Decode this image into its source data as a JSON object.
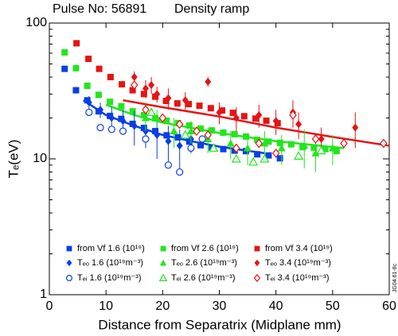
{
  "chart_data": {
    "type": "scatter",
    "title": "Pulse No: 56891",
    "subtitle": "Density ramp",
    "x_label": "Distance from Separatrix (Midplane mm)",
    "y_label": "Tₑ(eV)",
    "side_label": "JG04.61-8c",
    "log_y": true,
    "xlim": [
      0,
      60
    ],
    "xticks": [
      0,
      10,
      20,
      30,
      40,
      50,
      60
    ],
    "ylim": [
      1,
      100
    ],
    "yticks": [
      1,
      10,
      100
    ],
    "y_minor_ticks": [
      2,
      3,
      4,
      5,
      6,
      7,
      8,
      9,
      20,
      30,
      40,
      50,
      60,
      70,
      80,
      90
    ],
    "series": [
      {
        "name": "from Vf 1.6 (10¹⁹)",
        "color": "#0a3ee6",
        "marker": "square",
        "filled": true,
        "x": [
          2.7,
          4.7,
          6.7,
          8.7,
          10.7,
          12.7,
          14.7,
          16.7,
          18.7,
          20.7,
          22.7,
          24.7,
          26.7,
          28.7,
          30.7,
          32.7,
          34.7,
          36.7,
          38.7,
          40.7
        ],
        "values": [
          46,
          32,
          27,
          22.4,
          20.7,
          19.7,
          18.1,
          16.9,
          16,
          14.9,
          14.4,
          13.4,
          12.6,
          12.1,
          11.8,
          11.5,
          11.4,
          10.8,
          10.6,
          10.1
        ]
      },
      {
        "name": "from Vf 2.6 (10¹⁹)",
        "color": "#22e61e",
        "marker": "square",
        "filled": true,
        "x": [
          2.7,
          4.7,
          6.7,
          8.7,
          10.7,
          12.7,
          14.7,
          16.7,
          18.7,
          20.7,
          22.7,
          24.7,
          26.7,
          28.7,
          30.7,
          32.7,
          34.7,
          36.7,
          38.7,
          40.7,
          42.7,
          44.7,
          46.7,
          48.7,
          50.7
        ],
        "values": [
          60.8,
          46.5,
          34.5,
          29.6,
          26.3,
          24.4,
          22.4,
          21,
          19.9,
          19.1,
          18.3,
          17.6,
          16.7,
          16.2,
          15.6,
          15.2,
          14.6,
          13.8,
          13.4,
          13.1,
          12.8,
          12.2,
          12.1,
          11.8,
          11.4
        ]
      },
      {
        "name": "from Vf 3.4 (10¹⁹)",
        "color": "#e61414",
        "marker": "square",
        "filled": true,
        "x": [
          4.8,
          6.9,
          8.8,
          10.8,
          12.8,
          14.7,
          16.7,
          18.7,
          20.6,
          22.6,
          24.6,
          26.5,
          28.5,
          30.5,
          32.4,
          34.4,
          36.4,
          38.3,
          40.3
        ],
        "values": [
          71,
          54.5,
          46,
          40,
          35.4,
          32,
          30,
          28.7,
          26.7,
          25.6,
          25.3,
          24.6,
          23.6,
          22.7,
          21.8,
          20.6,
          19.8,
          19.1,
          18.3
        ]
      },
      {
        "name": "Tₑₒ 1.6 (10¹⁹m⁻³)",
        "color": "#0a3ee6",
        "marker": "diamond",
        "filled": true,
        "x": [
          7,
          9,
          11,
          13,
          15,
          17,
          19,
          21,
          23,
          25
        ],
        "values": [
          26,
          23,
          20,
          19,
          17.5,
          16,
          15,
          13.5,
          12.5,
          14
        ],
        "errors": [
          3,
          3,
          4,
          4,
          5,
          4,
          5,
          4,
          4,
          3
        ]
      },
      {
        "name": "Tₑₒ 2.6 (10¹⁹m⁻³)",
        "color": "#22e61e",
        "marker": "triangle",
        "filled": true,
        "x": [
          17,
          19,
          22,
          25,
          28,
          32,
          35,
          38,
          41,
          45,
          47,
          50
        ],
        "values": [
          20,
          20,
          16,
          16,
          14,
          13,
          12,
          13,
          12,
          12.5,
          11,
          12
        ],
        "errors": [
          4,
          3,
          4,
          3,
          3,
          3,
          3,
          3,
          3,
          4,
          3,
          3
        ]
      },
      {
        "name": "Tₑₒ 3.4 (10¹⁹m⁻³)",
        "color": "#e61414",
        "marker": "diamond",
        "filled": true,
        "x": [
          15,
          17,
          18,
          19,
          21,
          24,
          28,
          30,
          33,
          37,
          40,
          43,
          44,
          48,
          54
        ],
        "values": [
          40,
          33,
          35,
          30,
          28,
          27,
          37,
          22,
          20,
          21,
          19,
          22,
          18,
          14,
          17
        ],
        "errors": [
          4,
          5,
          5,
          4,
          5,
          4,
          3,
          4,
          4,
          4,
          4,
          5,
          4,
          3,
          5
        ]
      },
      {
        "name": "Tₑᵢ 1.6 (10¹⁹m⁻³)",
        "color": "#0a3ee6",
        "marker": "circle",
        "filled": false,
        "x": [
          7,
          9,
          11,
          13,
          17,
          21,
          23,
          25,
          27
        ],
        "values": [
          22,
          17,
          16.5,
          16,
          14,
          9,
          8,
          12,
          14
        ]
      },
      {
        "name": "Tₑᵢ 2.6 (10¹⁹m⁻³)",
        "color": "#22e61e",
        "marker": "triangle",
        "filled": false,
        "x": [
          18,
          24,
          29,
          33,
          36,
          38,
          44,
          48
        ],
        "values": [
          22,
          15,
          12,
          10,
          9.5,
          10,
          10.5,
          11.5
        ]
      },
      {
        "name": "Tₑᵢ 3.4 (10¹⁹m⁻³)",
        "color": "#e61414",
        "marker": "diamond",
        "filled": false,
        "x": [
          15,
          17,
          20,
          23,
          26,
          28,
          33,
          37,
          40,
          43,
          47,
          52,
          59
        ],
        "values": [
          35,
          23,
          20,
          18,
          16,
          15,
          12,
          13,
          11,
          21,
          14,
          13,
          13
        ]
      }
    ],
    "fits": [
      {
        "color": "#0a3ee6",
        "x": [
          6,
          10,
          15,
          20,
          25,
          30,
          38
        ],
        "values": [
          27,
          21,
          17.5,
          15,
          13.5,
          12.3,
          11
        ]
      },
      {
        "color": "#22e61e",
        "x": [
          10,
          15,
          20,
          30,
          40,
          52
        ],
        "values": [
          25,
          21,
          18.5,
          15.5,
          13.5,
          12
        ]
      },
      {
        "color": "#e61414",
        "x": [
          13,
          20,
          30,
          40,
          50,
          60
        ],
        "values": [
          27,
          24,
          20.5,
          17,
          14.5,
          12.5
        ]
      }
    ]
  }
}
